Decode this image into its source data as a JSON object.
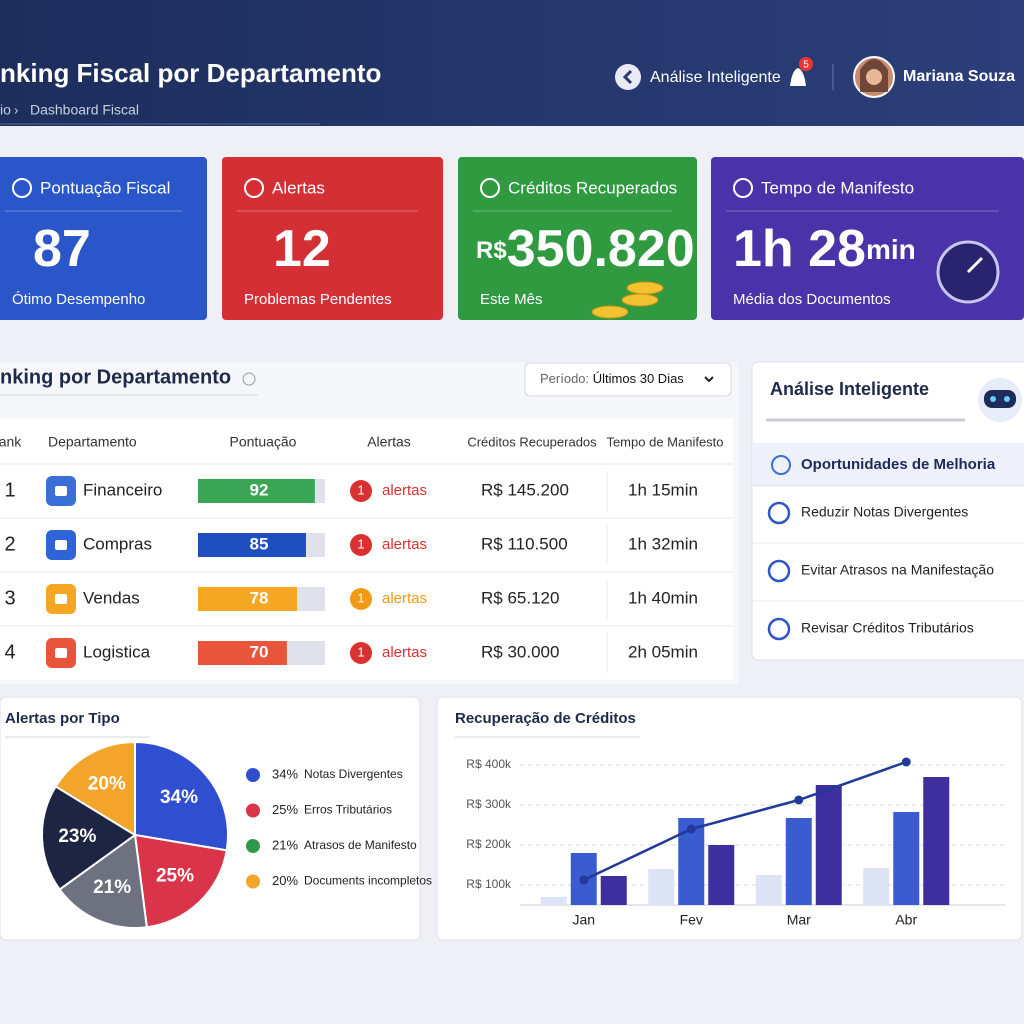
{
  "header": {
    "title": "nking Fiscal por Departamento",
    "breadcrumb": [
      "io",
      "Dashboard Fiscal"
    ],
    "assistant": "Análise Inteligente",
    "notifications": "5",
    "user": "Mariana Souza"
  },
  "kpis": [
    {
      "title": "Pontuação Fiscal",
      "value": "87",
      "caption": "Ótimo Desempenho",
      "color": "#2a56c9"
    },
    {
      "title": "Alertas",
      "value": "12",
      "caption": "Problemas Pendentes",
      "color": "#d42f35"
    },
    {
      "title": "Créditos Recuperados",
      "prefix": "R$",
      "value": "350.820",
      "caption": "Este Mês",
      "color": "#2f9a3f"
    },
    {
      "title": "Tempo de Manifesto",
      "value": "1h 28",
      "unit": "min",
      "caption": "Média dos Documentos",
      "color": "#4a32a8"
    }
  ],
  "ranking": {
    "title": "nking por Departamento",
    "period_label": "Período:",
    "period": "Últimos 30 Dias",
    "columns": [
      "ank",
      "Departamento",
      "Pontuação",
      "Alertas",
      "Créditos Recuperados",
      "Tempo de Manifesto"
    ],
    "rows": [
      {
        "rank": 1,
        "department": "Financeiro",
        "score": 92,
        "alerts": 1,
        "alerts_label": "alertas",
        "credits": "R$ 145.200",
        "time": "1h 15min",
        "color": "#3aa655",
        "icon_color": "#3a6fd8",
        "alert_color": "#d93030"
      },
      {
        "rank": 2,
        "department": "Compras",
        "score": 85,
        "alerts": 1,
        "alerts_label": "alertas",
        "credits": "R$ 110.500",
        "time": "1h 32min",
        "color": "#1f4fbf",
        "icon_color": "#2f63d8",
        "alert_color": "#d93030"
      },
      {
        "rank": 3,
        "department": "Vendas",
        "score": 78,
        "alerts": 1,
        "alerts_label": "alertas",
        "credits": "R$ 65.120",
        "time": "1h 40min",
        "color": "#f5a623",
        "icon_color": "#f5a623",
        "alert_color": "#f29a12"
      },
      {
        "rank": 4,
        "department": "Logistica",
        "score": 70,
        "alerts": 1,
        "alerts_label": "alertas",
        "credits": "R$ 30.000",
        "time": "2h 05min",
        "color": "#e8553a",
        "icon_color": "#e8553a",
        "alert_color": "#d93030"
      }
    ]
  },
  "insights": {
    "title": "Análise Inteligente",
    "heading": "Oportunidades de Melhoria",
    "items": [
      "Reduzir Notas Divergentes",
      "Evitar Atrasos na Manifestação",
      "Revisar Créditos Tributários"
    ]
  },
  "chart_data": [
    {
      "type": "pie",
      "title": "Alertas por Tipo",
      "categories": [
        "Notas Divergentes",
        "Erros Tributários",
        "Atrasos de Manifesto",
        null,
        "Documents incompletos"
      ],
      "values": [
        34,
        25,
        21,
        23,
        20
      ],
      "value_labels": [
        "34%",
        "25%",
        "21%",
        "23%",
        "20%"
      ],
      "colors": [
        "#2f4fd0",
        "#d9344a",
        "#6d7180",
        "#1e2542",
        "#f2a52a"
      ],
      "legend_colors": [
        "#2f4fd0",
        "#d9344a",
        "#2e9a48",
        null,
        "#f2a52a"
      ]
    },
    {
      "type": "bar",
      "title": "Recuperação de Créditos",
      "categories": [
        "Jan",
        "Fev",
        "Mar",
        "Abr"
      ],
      "ylim": [
        50000,
        425000
      ],
      "yticks": [
        {
          "value": 100000,
          "label": "R$ 100k"
        },
        {
          "value": 200000,
          "label": "R$ 200k"
        },
        {
          "value": 300000,
          "label": "R$ 300k"
        },
        {
          "value": 400000,
          "label": "R$ 400k"
        }
      ],
      "grid": true,
      "series": [
        {
          "type": "bar",
          "color": "#dde4f6",
          "values": [
            70000,
            140000,
            125000,
            142500
          ]
        },
        {
          "type": "bar",
          "color": "#3b5bd0",
          "values": [
            180000,
            267500,
            267500,
            282500
          ]
        },
        {
          "type": "bar",
          "color": "#3d2f9e",
          "values": [
            122500,
            200000,
            350000,
            370000
          ]
        },
        {
          "type": "line",
          "color": "#1f3a9a",
          "values": [
            112500,
            240000,
            312500,
            407500
          ]
        }
      ]
    }
  ]
}
